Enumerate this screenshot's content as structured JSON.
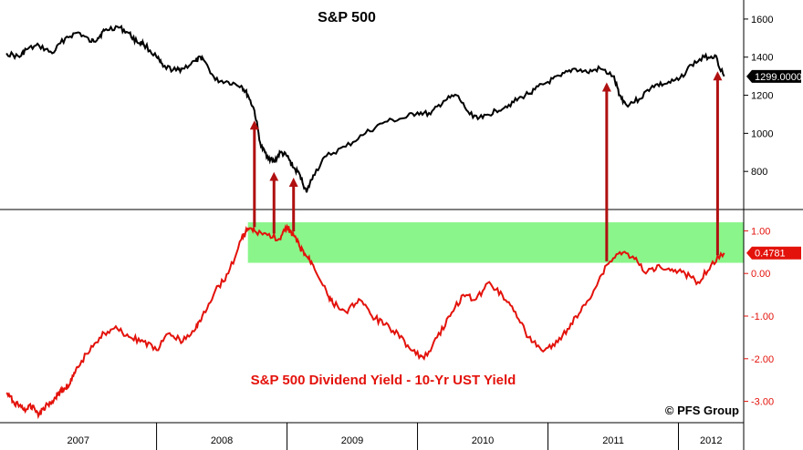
{
  "chart_data": [
    {
      "type": "line",
      "title": "S&P 500",
      "ylim": [
        600,
        1700
      ],
      "yticks": [
        800,
        1000,
        1200,
        1400,
        1600
      ],
      "last_value_label": "1299.0000",
      "color": "#000000",
      "series": [
        {
          "name": "S&P 500",
          "x": [
            2006.85,
            2006.95,
            2007.0,
            2007.1,
            2007.2,
            2007.3,
            2007.4,
            2007.5,
            2007.55,
            2007.6,
            2007.7,
            2007.78,
            2007.85,
            2007.9,
            2008.0,
            2008.05,
            2008.15,
            2008.2,
            2008.3,
            2008.35,
            2008.45,
            2008.55,
            2008.65,
            2008.7,
            2008.75,
            2008.8,
            2008.85,
            2008.9,
            2008.95,
            2009.0,
            2009.05,
            2009.1,
            2009.15,
            2009.2,
            2009.3,
            2009.45,
            2009.6,
            2009.75,
            2009.9,
            2010.0,
            2010.1,
            2010.2,
            2010.3,
            2010.4,
            2010.5,
            2010.6,
            2010.7,
            2010.8,
            2010.9,
            2011.0,
            2011.1,
            2011.2,
            2011.3,
            2011.4,
            2011.5,
            2011.55,
            2011.6,
            2011.7,
            2011.8,
            2011.9,
            2012.0,
            2012.1,
            2012.2,
            2012.28,
            2012.35
          ],
          "values": [
            1420,
            1400,
            1440,
            1460,
            1420,
            1500,
            1530,
            1480,
            1500,
            1540,
            1560,
            1530,
            1480,
            1470,
            1400,
            1350,
            1330,
            1340,
            1380,
            1400,
            1280,
            1270,
            1250,
            1200,
            1120,
            930,
            880,
            850,
            900,
            880,
            820,
            780,
            690,
            780,
            880,
            930,
            1000,
            1060,
            1080,
            1110,
            1100,
            1170,
            1200,
            1100,
            1080,
            1120,
            1150,
            1190,
            1230,
            1270,
            1300,
            1340,
            1320,
            1340,
            1300,
            1200,
            1150,
            1180,
            1250,
            1260,
            1280,
            1360,
            1400,
            1410,
            1299
          ]
        }
      ],
      "annotation_x": [
        2008.75,
        2008.9,
        2009.05,
        2011.45,
        2012.3
      ]
    },
    {
      "type": "line",
      "title": "S&P 500 Dividend Yield - 10-Yr UST Yield",
      "ylim": [
        -3.5,
        1.5
      ],
      "yticks": [
        1.0,
        0.0,
        -1.0,
        -2.0,
        -3.0
      ],
      "ytick_labels": [
        "1.00",
        "0.00",
        "-1.00",
        "-2.00",
        "-3.00"
      ],
      "last_value_label": "0.4781",
      "color": "#e3120b",
      "highlight_band": [
        0.25,
        1.2
      ],
      "series": [
        {
          "name": "S&P 500 Dividend Yield - 10-Yr UST Yield",
          "x": [
            2006.85,
            2006.9,
            2006.95,
            2007.0,
            2007.05,
            2007.1,
            2007.15,
            2007.2,
            2007.25,
            2007.3,
            2007.35,
            2007.4,
            2007.5,
            2007.6,
            2007.7,
            2007.8,
            2007.9,
            2008.0,
            2008.1,
            2008.2,
            2008.3,
            2008.35,
            2008.45,
            2008.55,
            2008.65,
            2008.7,
            2008.75,
            2008.85,
            2008.95,
            2009.0,
            2009.05,
            2009.1,
            2009.15,
            2009.2,
            2009.3,
            2009.35,
            2009.45,
            2009.55,
            2009.65,
            2009.75,
            2009.85,
            2009.95,
            2010.05,
            2010.15,
            2010.25,
            2010.35,
            2010.45,
            2010.55,
            2010.65,
            2010.75,
            2010.85,
            2010.95,
            2011.05,
            2011.15,
            2011.25,
            2011.35,
            2011.45,
            2011.55,
            2011.65,
            2011.75,
            2011.85,
            2011.95,
            2012.05,
            2012.15,
            2012.25,
            2012.35
          ],
          "values": [
            -2.8,
            -3.0,
            -3.1,
            -3.2,
            -3.1,
            -3.3,
            -3.1,
            -3.0,
            -2.8,
            -2.7,
            -2.5,
            -2.2,
            -1.7,
            -1.4,
            -1.3,
            -1.5,
            -1.6,
            -1.8,
            -1.4,
            -1.6,
            -1.3,
            -1.0,
            -0.4,
            0.0,
            0.8,
            1.05,
            1.0,
            0.9,
            0.8,
            1.1,
            0.9,
            0.6,
            0.4,
            0.2,
            -0.4,
            -0.7,
            -0.9,
            -0.6,
            -1.0,
            -1.2,
            -1.4,
            -1.8,
            -2.0,
            -1.5,
            -1.0,
            -0.5,
            -0.6,
            -0.2,
            -0.5,
            -0.9,
            -1.5,
            -1.8,
            -1.7,
            -1.3,
            -0.9,
            -0.4,
            0.2,
            0.5,
            0.4,
            0.0,
            0.2,
            0.1,
            0.0,
            -0.2,
            0.2,
            0.48
          ]
        }
      ]
    }
  ],
  "x_axis": {
    "range": [
      2006.8,
      2012.5
    ],
    "years": [
      {
        "label": "2007",
        "start": 2006.8,
        "end": 2008.0
      },
      {
        "label": "2008",
        "start": 2008.0,
        "end": 2009.0
      },
      {
        "label": "2009",
        "start": 2009.0,
        "end": 2010.0
      },
      {
        "label": "2010",
        "start": 2010.0,
        "end": 2011.0
      },
      {
        "label": "2011",
        "start": 2011.0,
        "end": 2012.0
      },
      {
        "label": "2012",
        "start": 2012.0,
        "end": 2012.5
      }
    ]
  },
  "credit": "© PFS Group",
  "colors": {
    "band": "#8af58a",
    "arrow": "#b01010",
    "divider": "#808080",
    "badge_black": "#000000",
    "badge_red": "#e3120b"
  }
}
